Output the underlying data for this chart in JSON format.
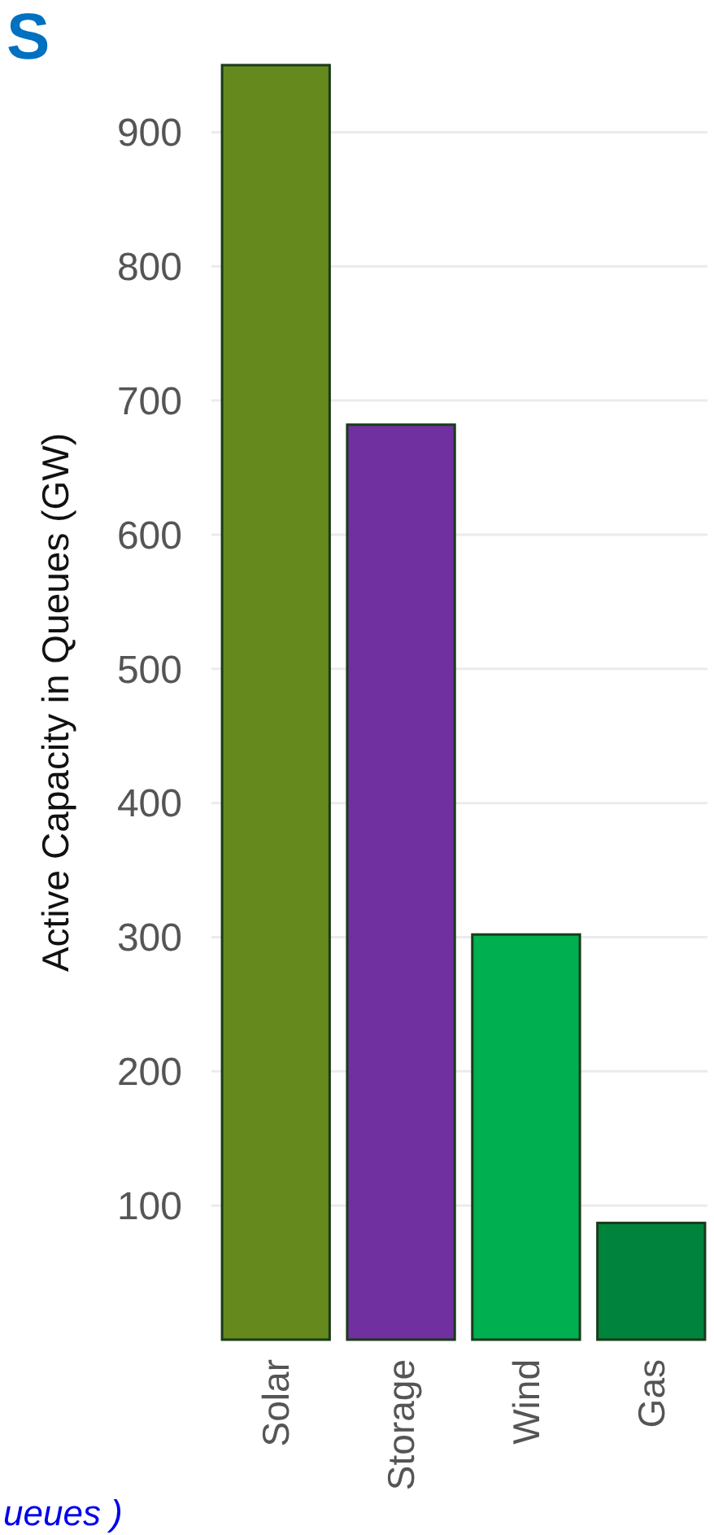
{
  "chart_data": {
    "type": "bar",
    "title": "S",
    "ylabel": "Active Capacity in Queues (GW)",
    "categories": [
      "Solar",
      "Storage",
      "Wind",
      "Gas"
    ],
    "values": [
      950,
      682,
      302,
      87
    ],
    "colors": [
      "#66891e",
      "#7030a0",
      "#00b050",
      "#00843d"
    ],
    "ylim": [
      0,
      950
    ],
    "yticks": [
      100,
      200,
      300,
      400,
      500,
      600,
      700,
      800,
      900
    ],
    "grid": "y",
    "annotations": [
      "ueues )"
    ]
  }
}
